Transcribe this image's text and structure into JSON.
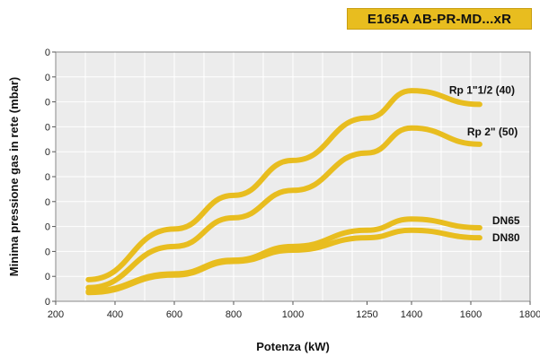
{
  "badge": {
    "text": "E165A AB-PR-MD...xR"
  },
  "chart_data": {
    "type": "line",
    "title": "E165A AB-PR-MD...xR",
    "xlabel": "Potenza (kW)",
    "ylabel": "Minima pressione gas in rete (mbar)",
    "xlim": [
      200,
      1800
    ],
    "xticks": [
      200,
      400,
      600,
      800,
      1000,
      1250,
      1400,
      1600,
      1800
    ],
    "ylim": [
      0,
      10
    ],
    "yticks": [
      "0",
      "0",
      "0",
      "0",
      "0",
      "0",
      "0",
      "0",
      "0",
      "0",
      "0"
    ],
    "grid": true,
    "line_color": "#e8bd1f",
    "series": [
      {
        "name": "Rp 1\"1/2 (40)",
        "x": [
          310,
          600,
          800,
          1000,
          1250,
          1400,
          1630
        ],
        "y": [
          0.87,
          2.9,
          4.25,
          5.65,
          7.35,
          8.45,
          7.9
        ]
      },
      {
        "name": "Rp 2\" (50)",
        "x": [
          310,
          600,
          800,
          1000,
          1250,
          1400,
          1630
        ],
        "y": [
          0.55,
          2.2,
          3.35,
          4.45,
          5.95,
          6.95,
          6.3
        ]
      },
      {
        "name": "DN65",
        "x": [
          310,
          600,
          800,
          1000,
          1250,
          1400,
          1630
        ],
        "y": [
          0.4,
          1.1,
          1.65,
          2.2,
          2.85,
          3.3,
          2.95
        ]
      },
      {
        "name": "DN80",
        "x": [
          310,
          600,
          800,
          1000,
          1250,
          1400,
          1630
        ],
        "y": [
          0.35,
          1.05,
          1.6,
          2.05,
          2.55,
          2.85,
          2.55
        ]
      }
    ]
  }
}
